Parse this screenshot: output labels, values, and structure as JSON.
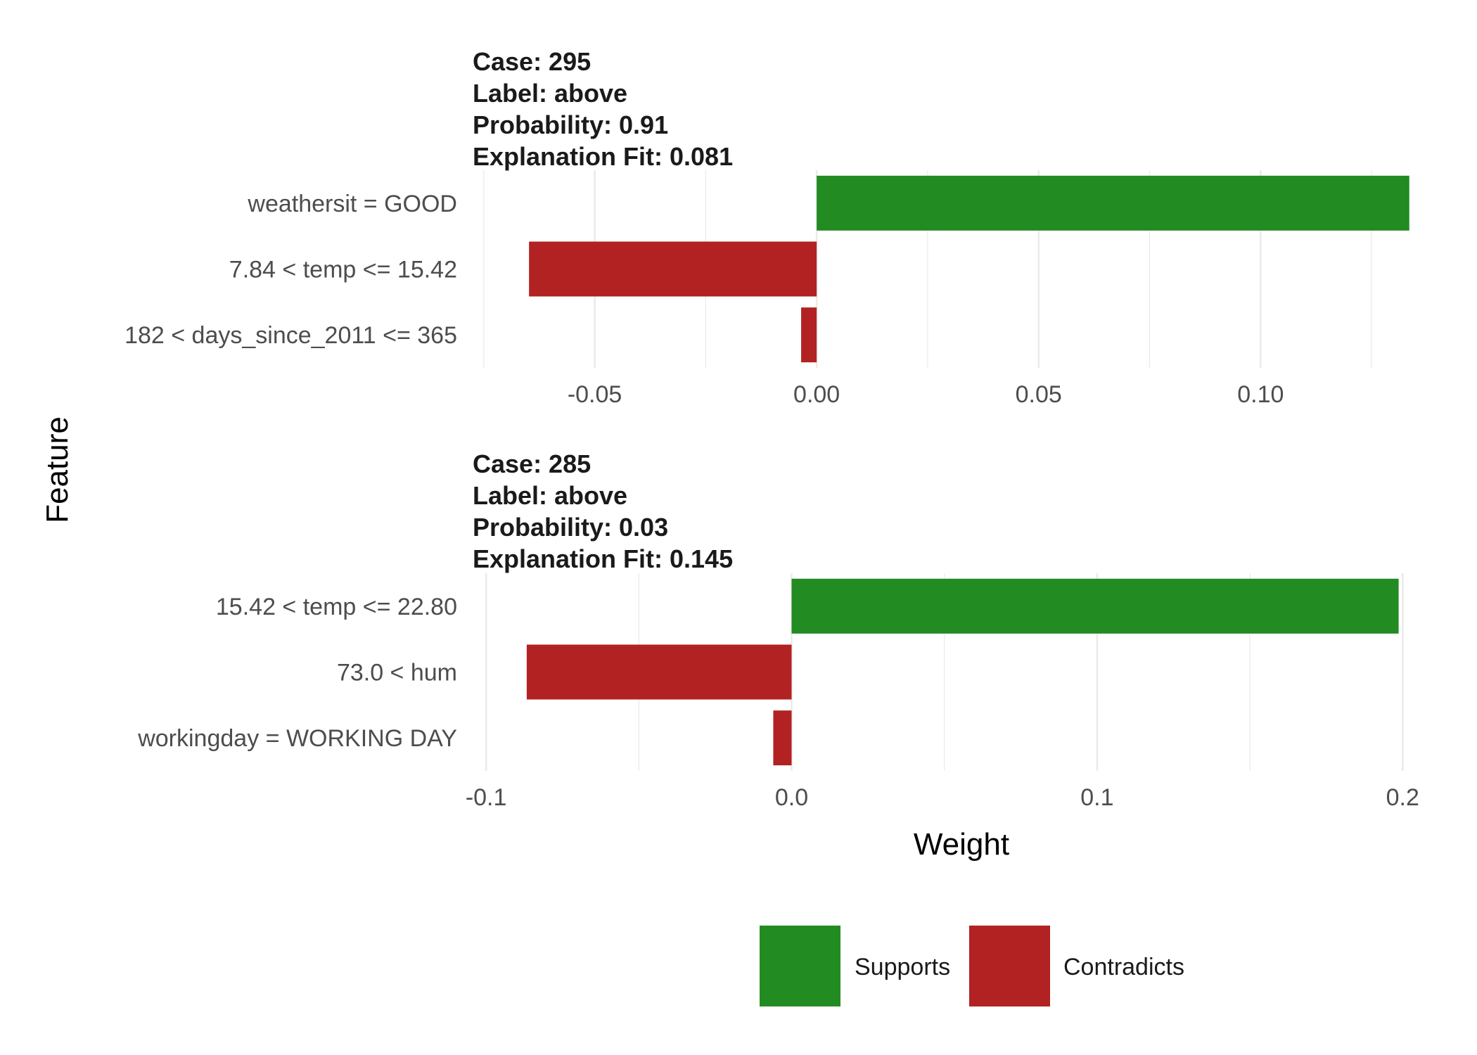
{
  "chart_data": {
    "type": "bar",
    "xlabel": "Weight",
    "ylabel": "Feature",
    "colors": {
      "Supports": "#228B22",
      "Contradicts": "#B22222"
    },
    "legend": {
      "position": "bottom",
      "entries": [
        "Supports",
        "Contradicts"
      ]
    },
    "panels": [
      {
        "title_lines": [
          "Case: 295",
          "Label: above",
          "Probability: 0.91",
          "Explanation Fit: 0.081"
        ],
        "xlim": [
          -0.0775,
          0.1375
        ],
        "major_ticks": [
          -0.05,
          0.0,
          0.05,
          0.1
        ],
        "tick_labels": [
          "-0.05",
          "0.00",
          "0.05",
          "0.10"
        ],
        "minor_ticks": [
          -0.075,
          -0.025,
          0.025,
          0.075,
          0.125
        ],
        "features": [
          {
            "label": "weathersit = GOOD",
            "weight": 0.1335,
            "type": "Supports"
          },
          {
            "label": "7.84 < temp <= 15.42",
            "weight": -0.0648,
            "type": "Contradicts"
          },
          {
            "label": "182 < days_since_2011 <= 365",
            "weight": -0.0035,
            "type": "Contradicts"
          }
        ]
      },
      {
        "title_lines": [
          "Case: 285",
          "Label: above",
          "Probability: 0.03",
          "Explanation Fit: 0.145"
        ],
        "xlim": [
          -0.1044,
          0.208
        ],
        "major_ticks": [
          -0.1,
          0.0,
          0.1,
          0.2
        ],
        "tick_labels": [
          "-0.1",
          "0.0",
          "0.1",
          "0.2"
        ],
        "minor_ticks": [
          -0.05,
          0.05,
          0.15
        ],
        "features": [
          {
            "label": "15.42 < temp <= 22.80",
            "weight": 0.1987,
            "type": "Supports"
          },
          {
            "label": "73.0 < hum",
            "weight": -0.0867,
            "type": "Contradicts"
          },
          {
            "label": "workingday = WORKING DAY",
            "weight": -0.006,
            "type": "Contradicts"
          }
        ]
      }
    ]
  }
}
